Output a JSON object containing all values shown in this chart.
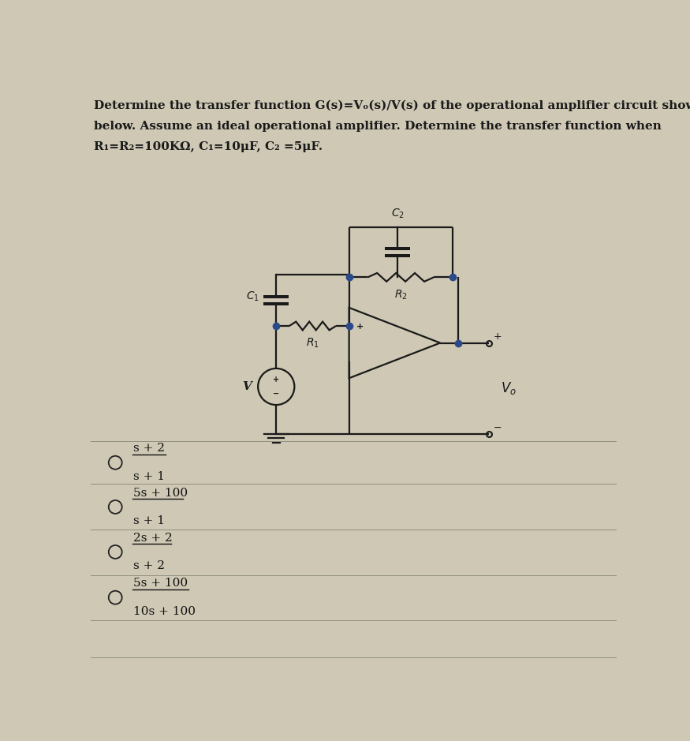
{
  "bg_color": "#cec8b4",
  "text_color": "#1a1a1a",
  "title_line1": "Determine the transfer function G(s)=V",
  "title_line1b": "o",
  "title_line1c": "(s)/V(s) of the operational amplifier circuit shown",
  "title_line2": "below. Assume an ideal operational amplifier. Determine the transfer function when",
  "title_line3": "R",
  "title_line3_parts": [
    "R",
    "1",
    "=R",
    "2",
    "=100KΩ, C",
    "1",
    "=10μF, C",
    "2",
    "=5μF."
  ],
  "options": [
    {
      "num": "s + 2",
      "den": "s + 1"
    },
    {
      "num": "5s + 100",
      "den": "s + 1"
    },
    {
      "num": "2s + 2",
      "den": "s + 2"
    },
    {
      "num": "5s + 100",
      "den": "10s + 100"
    }
  ],
  "wire_color": "#1a1a1a",
  "dot_color": "#2a4a8a",
  "lw": 1.6
}
